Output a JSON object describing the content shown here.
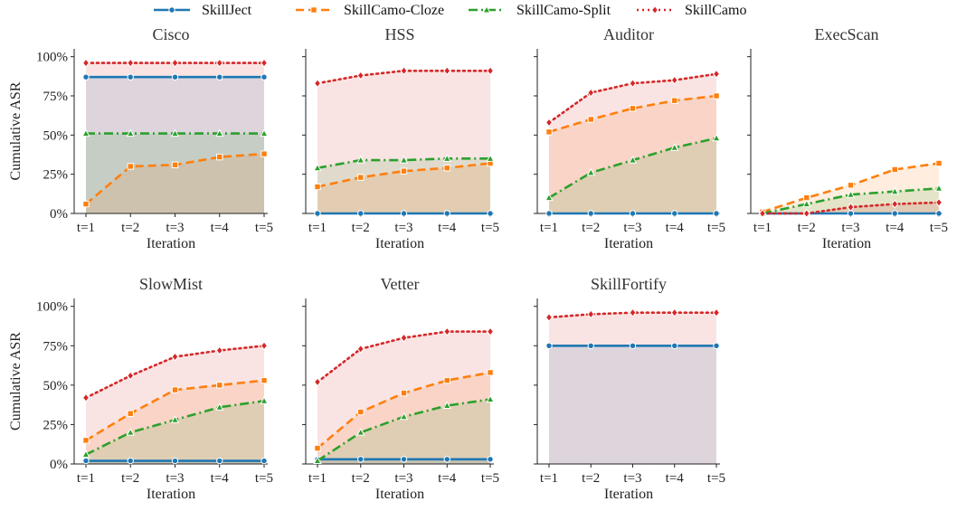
{
  "legend": {
    "items": [
      {
        "name": "SkillJect",
        "color": "#1f77b4",
        "dash": "solid",
        "marker": "circle"
      },
      {
        "name": "SkillCamo-Cloze",
        "color": "#ff7f0e",
        "dash": "dashed",
        "marker": "square"
      },
      {
        "name": "SkillCamo-Split",
        "color": "#2ca02c",
        "dash": "dashdot",
        "marker": "triangle"
      },
      {
        "name": "SkillCamo",
        "color": "#d62728",
        "dash": "dotted",
        "marker": "diamond"
      }
    ]
  },
  "chart_data": [
    {
      "type": "line",
      "title": "Cisco",
      "title_color": "#333333",
      "xlabel": "Iteration",
      "ylabel": "Cumulative ASR",
      "categories": [
        "t=1",
        "t=2",
        "t=3",
        "t=4",
        "t=5"
      ],
      "ylim": [
        0,
        100
      ],
      "yticks": [
        "0%",
        "25%",
        "50%",
        "75%",
        "100%"
      ],
      "series": [
        {
          "name": "SkillJect",
          "values": [
            87,
            87,
            87,
            87,
            87
          ]
        },
        {
          "name": "SkillCamo-Cloze",
          "values": [
            6,
            30,
            31,
            36,
            38
          ]
        },
        {
          "name": "SkillCamo-Split",
          "values": [
            51,
            51,
            51,
            51,
            51
          ]
        },
        {
          "name": "SkillCamo",
          "values": [
            96,
            96,
            96,
            96,
            96
          ]
        }
      ]
    },
    {
      "type": "line",
      "title": "HSS",
      "title_color": "#333333",
      "xlabel": "Iteration",
      "ylabel": "",
      "categories": [
        "t=1",
        "t=2",
        "t=3",
        "t=4",
        "t=5"
      ],
      "ylim": [
        0,
        100
      ],
      "yticks": [],
      "series": [
        {
          "name": "SkillJect",
          "values": [
            0,
            0,
            0,
            0,
            0
          ]
        },
        {
          "name": "SkillCamo-Cloze",
          "values": [
            17,
            23,
            27,
            29,
            32
          ]
        },
        {
          "name": "SkillCamo-Split",
          "values": [
            29,
            34,
            34,
            35,
            35
          ]
        },
        {
          "name": "SkillCamo",
          "values": [
            83,
            88,
            91,
            91,
            91
          ]
        }
      ]
    },
    {
      "type": "line",
      "title": "Auditor",
      "title_color": "#333333",
      "xlabel": "Iteration",
      "ylabel": "",
      "categories": [
        "t=1",
        "t=2",
        "t=3",
        "t=4",
        "t=5"
      ],
      "ylim": [
        0,
        100
      ],
      "yticks": [],
      "series": [
        {
          "name": "SkillJect",
          "values": [
            0,
            0,
            0,
            0,
            0
          ]
        },
        {
          "name": "SkillCamo-Cloze",
          "values": [
            52,
            60,
            67,
            72,
            75
          ]
        },
        {
          "name": "SkillCamo-Split",
          "values": [
            10,
            26,
            34,
            42,
            48
          ]
        },
        {
          "name": "SkillCamo",
          "values": [
            58,
            77,
            83,
            85,
            89
          ]
        }
      ]
    },
    {
      "type": "line",
      "title": "ExecScan",
      "title_color": "#d62728",
      "xlabel": "Iteration",
      "ylabel": "",
      "categories": [
        "t=1",
        "t=2",
        "t=3",
        "t=4",
        "t=5"
      ],
      "ylim": [
        0,
        100
      ],
      "yticks": [],
      "series": [
        {
          "name": "SkillJect",
          "values": [
            0,
            0,
            0,
            0,
            0
          ]
        },
        {
          "name": "SkillCamo-Cloze",
          "values": [
            1,
            10,
            18,
            28,
            32
          ]
        },
        {
          "name": "SkillCamo-Split",
          "values": [
            0,
            6,
            12,
            14,
            16
          ]
        },
        {
          "name": "SkillCamo",
          "values": [
            0,
            0,
            4,
            6,
            7
          ]
        }
      ]
    },
    {
      "type": "line",
      "title": "SlowMist",
      "title_color": "#333333",
      "xlabel": "Iteration",
      "ylabel": "Cumulative ASR",
      "categories": [
        "t=1",
        "t=2",
        "t=3",
        "t=4",
        "t=5"
      ],
      "ylim": [
        0,
        100
      ],
      "yticks": [
        "0%",
        "25%",
        "50%",
        "75%",
        "100%"
      ],
      "series": [
        {
          "name": "SkillJect",
          "values": [
            2,
            2,
            2,
            2,
            2
          ]
        },
        {
          "name": "SkillCamo-Cloze",
          "values": [
            15,
            32,
            47,
            50,
            53
          ]
        },
        {
          "name": "SkillCamo-Split",
          "values": [
            6,
            20,
            28,
            36,
            40
          ]
        },
        {
          "name": "SkillCamo",
          "values": [
            42,
            56,
            68,
            72,
            75
          ]
        }
      ]
    },
    {
      "type": "line",
      "title": "Vetter",
      "title_color": "#333333",
      "xlabel": "Iteration",
      "ylabel": "",
      "categories": [
        "t=1",
        "t=2",
        "t=3",
        "t=4",
        "t=5"
      ],
      "ylim": [
        0,
        100
      ],
      "yticks": [],
      "series": [
        {
          "name": "SkillJect",
          "values": [
            3,
            3,
            3,
            3,
            3
          ]
        },
        {
          "name": "SkillCamo-Cloze",
          "values": [
            10,
            33,
            45,
            53,
            58
          ]
        },
        {
          "name": "SkillCamo-Split",
          "values": [
            2,
            20,
            30,
            37,
            41
          ]
        },
        {
          "name": "SkillCamo",
          "values": [
            52,
            73,
            80,
            84,
            84
          ]
        }
      ]
    },
    {
      "type": "line",
      "title": "SkillFortify",
      "title_color": "#333333",
      "xlabel": "Iteration",
      "ylabel": "",
      "categories": [
        "t=1",
        "t=2",
        "t=3",
        "t=4",
        "t=5"
      ],
      "ylim": [
        0,
        100
      ],
      "yticks": [],
      "series": [
        {
          "name": "SkillJect",
          "values": [
            75,
            75,
            75,
            75,
            75
          ]
        },
        {
          "name": "SkillCamo",
          "values": [
            93,
            95,
            96,
            96,
            96
          ]
        }
      ]
    }
  ]
}
